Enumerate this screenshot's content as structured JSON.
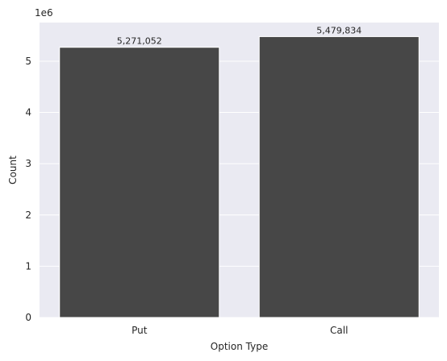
{
  "chart_data": {
    "type": "bar",
    "categories": [
      "Put",
      "Call"
    ],
    "values": [
      5271052,
      5479834
    ],
    "value_labels": [
      "5,271,052",
      "5,479,834"
    ],
    "xlabel": "Option Type",
    "ylabel": "Count",
    "y_offset_label": "1e6",
    "y_scale": 1000000,
    "yticks": [
      0,
      1,
      2,
      3,
      4,
      5
    ],
    "ylim": [
      0,
      5753826
    ],
    "grid": true,
    "colors": {
      "background": "#eaeaf2",
      "bar": "#474747",
      "bar_edge": "#ffffff",
      "grid": "#ffffff"
    }
  }
}
